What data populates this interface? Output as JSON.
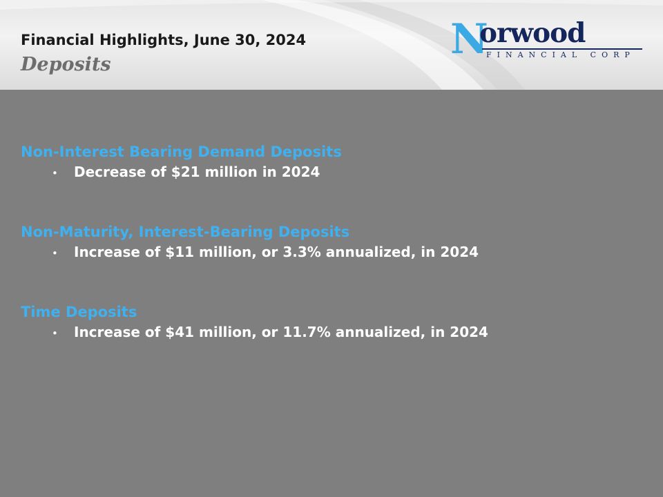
{
  "header": {
    "title": "Financial Highlights, June 30, 2024",
    "subtitle": "Deposits"
  },
  "logo": {
    "initial": "N",
    "wordmark": "orwood",
    "tagline": "FINANCIAL CORP"
  },
  "sections": [
    {
      "heading": "Non-Interest Bearing Demand Deposits",
      "bullet": "Decrease of $21 million in 2024"
    },
    {
      "heading": "Non-Maturity, Interest-Bearing Deposits",
      "bullet": "Increase of $11 million, or 3.3% annualized, in 2024"
    },
    {
      "heading": "Time Deposits",
      "bullet": "Increase of $41 million, or 11.7% annualized, in 2024"
    }
  ],
  "bullet_glyph": "•",
  "colors": {
    "background": "#7f7f7f",
    "heading": "#3fb1f0",
    "logo_dark": "#14265c",
    "logo_light": "#3aa9e4"
  }
}
